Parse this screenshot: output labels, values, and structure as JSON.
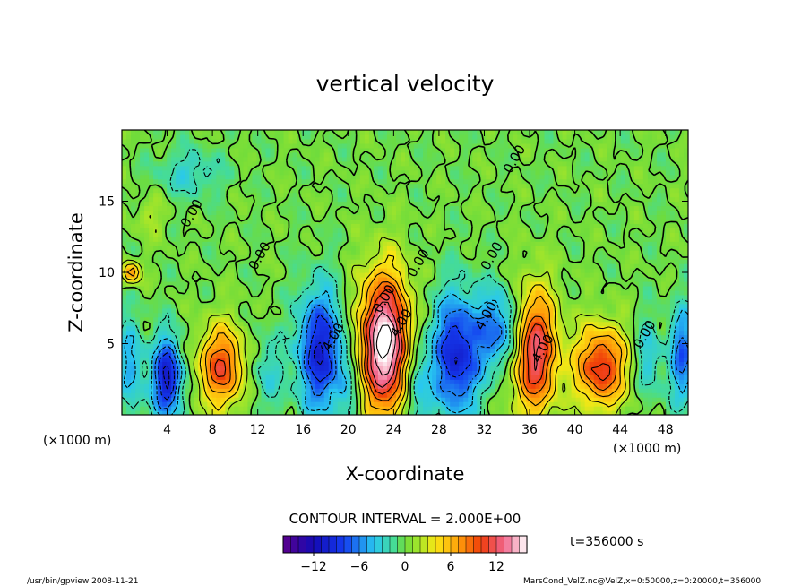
{
  "chart_data": {
    "type": "heatmap",
    "title": "vertical velocity",
    "xlabel": "X-coordinate",
    "ylabel": "Z-coordinate",
    "x_unit_left": "(×1000 m)",
    "x_unit_right": "(×1000 m)",
    "xlim": [
      0,
      50
    ],
    "ylim": [
      0,
      20
    ],
    "x_ticks": [
      4,
      8,
      12,
      16,
      20,
      24,
      28,
      32,
      36,
      40,
      44,
      48
    ],
    "y_ticks": [
      5,
      10,
      15
    ],
    "contour_interval_text": "CONTOUR INTERVAL = 2.000E+00",
    "time_text": "t=356000 s",
    "colorbar": {
      "range": [
        -16,
        16
      ],
      "ticks": [
        -12,
        -6,
        0,
        6,
        12
      ]
    },
    "contour_labels": [
      {
        "text": "0.00",
        "x": 6.5,
        "y": 14.0
      },
      {
        "text": "0.00",
        "x": 12.5,
        "y": 11.0
      },
      {
        "text": "0.00",
        "x": 23.5,
        "y": 8.0
      },
      {
        "text": "0.00",
        "x": 26.5,
        "y": 10.5
      },
      {
        "text": "0.00",
        "x": 33.0,
        "y": 11.0
      },
      {
        "text": "0.00",
        "x": 35.0,
        "y": 17.8
      },
      {
        "text": "0.00",
        "x": 46.5,
        "y": 5.5
      },
      {
        "text": "4.00",
        "x": 19.0,
        "y": 5.3
      },
      {
        "text": "4.00",
        "x": 25.0,
        "y": 6.3
      },
      {
        "text": "4.00",
        "x": 32.5,
        "y": 6.8
      },
      {
        "text": "4.00",
        "x": 37.5,
        "y": 4.5
      }
    ],
    "blobs": [
      {
        "x": 23.2,
        "y": 5.0,
        "sx": 1.6,
        "sy": 3.4,
        "amp": 17
      },
      {
        "x": 36.4,
        "y": 4.5,
        "sx": 1.4,
        "sy": 3.0,
        "amp": 13
      },
      {
        "x": 8.8,
        "y": 3.4,
        "sx": 1.4,
        "sy": 2.0,
        "amp": 10
      },
      {
        "x": 42.3,
        "y": 3.4,
        "sx": 1.6,
        "sy": 2.0,
        "amp": 11
      },
      {
        "x": 4.0,
        "y": 2.6,
        "sx": 0.9,
        "sy": 2.0,
        "amp": -11
      },
      {
        "x": 17.5,
        "y": 4.5,
        "sx": 1.4,
        "sy": 3.0,
        "amp": -10
      },
      {
        "x": 29.5,
        "y": 4.2,
        "sx": 1.5,
        "sy": 3.0,
        "amp": -10
      },
      {
        "x": 49.5,
        "y": 4.2,
        "sx": 0.8,
        "sy": 2.4,
        "amp": -7
      },
      {
        "x": 46.5,
        "y": 4.0,
        "sx": 0.8,
        "sy": 2.0,
        "amp": -4
      },
      {
        "x": 0.8,
        "y": 3.5,
        "sx": 0.8,
        "sy": 2.5,
        "amp": -5
      },
      {
        "x": 12.8,
        "y": 3.0,
        "sx": 1.0,
        "sy": 2.0,
        "amp": -3
      },
      {
        "x": 26.0,
        "y": 2.0,
        "sx": 0.8,
        "sy": 2.5,
        "amp": -5
      },
      {
        "x": 33.5,
        "y": 6.0,
        "sx": 1.5,
        "sy": 2.0,
        "amp": -7
      },
      {
        "x": 20.0,
        "y": 2.0,
        "sx": 0.8,
        "sy": 2.5,
        "amp": -3
      },
      {
        "x": 6.0,
        "y": 17.0,
        "sx": 2.0,
        "sy": 1.2,
        "amp": -3
      },
      {
        "x": 0.8,
        "y": 10.0,
        "sx": 0.6,
        "sy": 0.6,
        "amp": 7
      },
      {
        "x": 2.5,
        "y": 14.0,
        "sx": 1.0,
        "sy": 1.0,
        "amp": 2
      }
    ]
  },
  "footer": {
    "left": "/usr/bin/gpview   2008-11-21",
    "right": "MarsCond_VelZ.nc@VelZ,x=0:50000,z=0:20000,t=356000"
  }
}
